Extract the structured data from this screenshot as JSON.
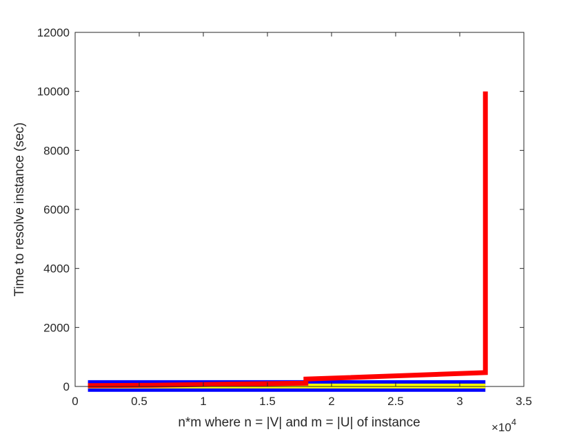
{
  "chart_data": {
    "type": "line",
    "title": "",
    "xlabel": "n*m where n = |V| and m = |U| of instance",
    "ylabel": "Time to resolve instance (sec)",
    "x_exponent_label": "×10",
    "x_exponent_power": "4",
    "xlim": [
      0,
      35000
    ],
    "ylim": [
      0,
      12000
    ],
    "x_ticks": [
      0,
      5000,
      10000,
      15000,
      20000,
      25000,
      30000,
      35000
    ],
    "x_tick_labels": [
      "0",
      "0.5",
      "1",
      "1.5",
      "2",
      "2.5",
      "3",
      "3.5"
    ],
    "y_ticks": [
      0,
      2000,
      4000,
      6000,
      8000,
      10000,
      12000
    ],
    "y_tick_labels": [
      "0",
      "2000",
      "4000",
      "6000",
      "8000",
      "10000",
      "12000"
    ],
    "grid": false,
    "legend": "none",
    "series": [
      {
        "color": "#0000ff",
        "x": [
          1000,
          32000
        ],
        "y": [
          130,
          130
        ]
      },
      {
        "color": "#0000ff",
        "x": [
          1000,
          32000
        ],
        "y": [
          -100,
          -100
        ]
      },
      {
        "color": "#ffff00",
        "x": [
          1000,
          32000
        ],
        "y": [
          15,
          15
        ]
      },
      {
        "color": "#ff0000",
        "x": [
          1000,
          6000,
          12000,
          18000,
          18000,
          32000,
          32000
        ],
        "y": [
          30,
          40,
          80,
          110,
          250,
          470,
          10000
        ]
      }
    ]
  }
}
